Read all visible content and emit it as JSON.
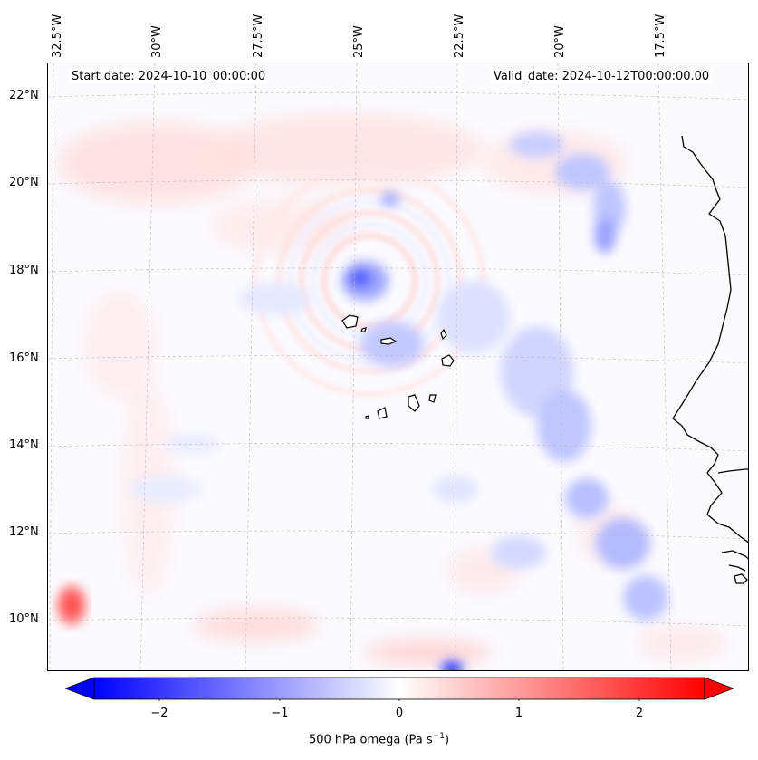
{
  "header": {
    "start_date": "Start date: 2024-10-10_00:00:00",
    "valid_date": "Valid_date: 2024-10-12T00:00:00.00"
  },
  "axes": {
    "lon_labels": [
      "32.5°W",
      "30°W",
      "27.5°W",
      "25°W",
      "22.5°W",
      "20°W",
      "17.5°W"
    ],
    "lat_labels": [
      "22°N",
      "20°N",
      "18°N",
      "16°N",
      "14°N",
      "12°N",
      "10°N"
    ]
  },
  "colorbar": {
    "ticks": [
      "−2",
      "−1",
      "0",
      "1",
      "2"
    ],
    "label_main": "500 hPa omega (Pa s",
    "label_sup": "−1",
    "label_close": ")",
    "range": [
      -2.5,
      2.5
    ],
    "neg_color": "#0000ff",
    "pos_color": "#ff0000",
    "extend": "both"
  },
  "map": {
    "projection": "lambert-conformal",
    "extent_lon": [
      -33,
      -16
    ],
    "extent_lat": [
      8.8,
      22.8
    ],
    "coastline_color": "#000000",
    "grid": "dashed gray gridlines",
    "field": "500 hPa omega"
  }
}
